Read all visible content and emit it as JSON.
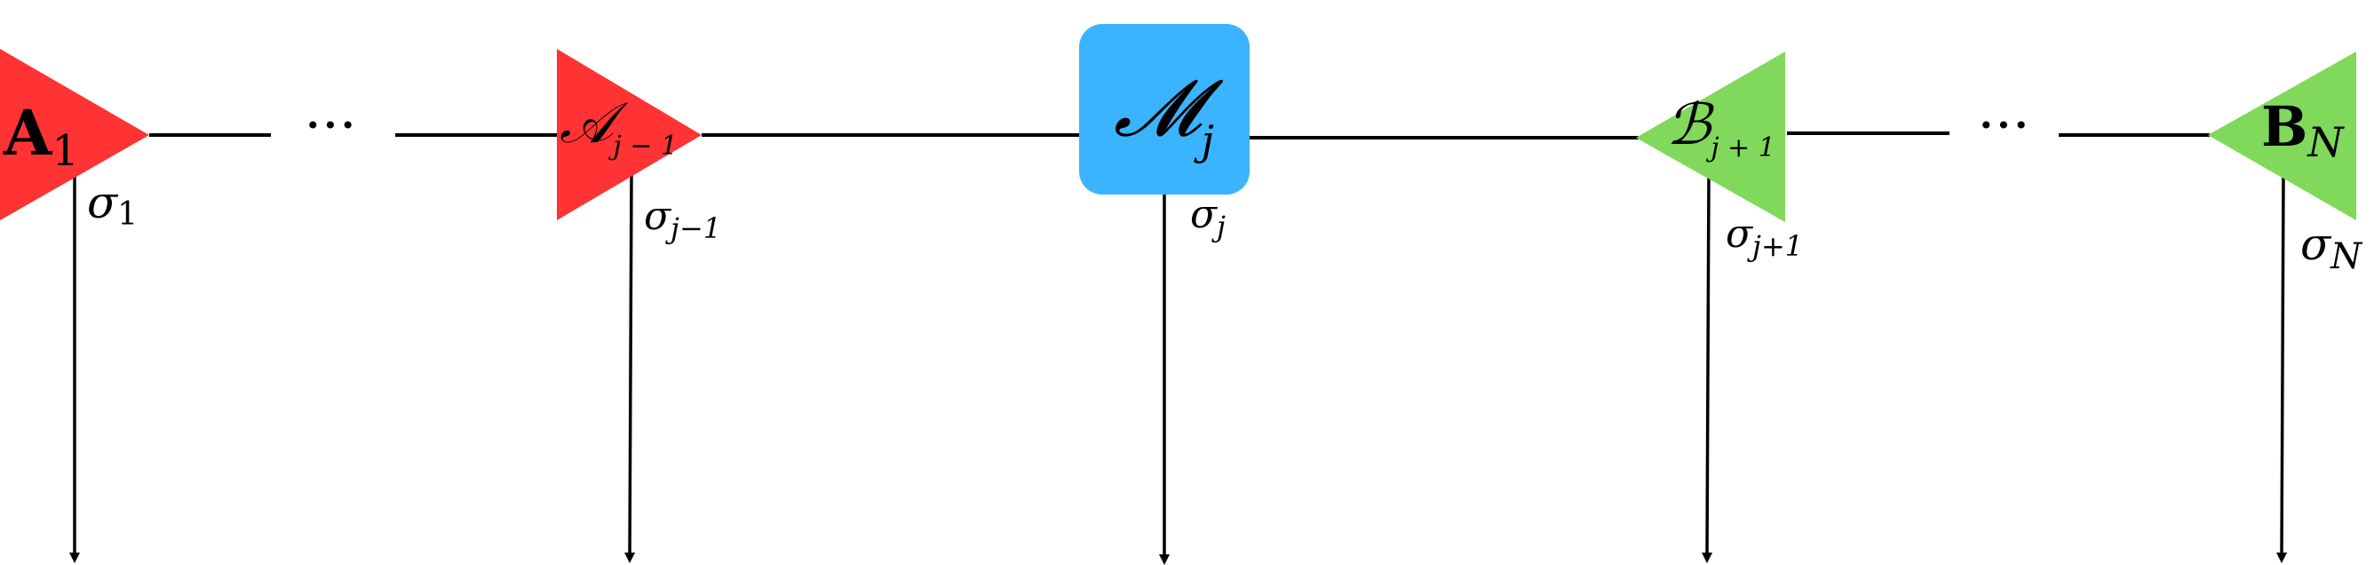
{
  "nodes": {
    "a1": {
      "letter": "A",
      "sub": "1",
      "color": "#ff3333"
    },
    "aj": {
      "letter": "𝒜",
      "sub": "j − 1",
      "color": "#ff3333"
    },
    "mj": {
      "letter": "𝓜",
      "sub": "j",
      "color": "#3bb4ff"
    },
    "bj": {
      "letter": "ℬ",
      "sub": "j + 1",
      "color": "#80d95a"
    },
    "bn": {
      "letter": "B",
      "sub": "N",
      "color": "#80d95a"
    }
  },
  "labels": {
    "s1": {
      "sym": "σ",
      "sub": "1"
    },
    "sj1": {
      "sym": "σ",
      "sub": "j−1"
    },
    "sj": {
      "sym": "σ",
      "sub": "j"
    },
    "sjp": {
      "sym": "σ",
      "sub": "j+1"
    },
    "sn": {
      "sym": "σ",
      "sub": "N"
    }
  },
  "ellipsis": {
    "left": "···",
    "right": "···"
  },
  "colors": {
    "line": "#000000",
    "red": "#ff3333",
    "blue": "#3bb4ff",
    "green": "#80d95a"
  }
}
